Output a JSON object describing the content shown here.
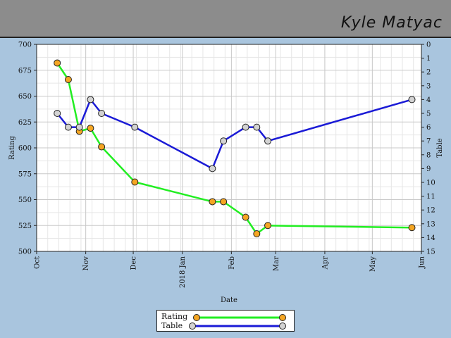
{
  "header": {
    "name": "Kyle Matyac"
  },
  "chart_data": {
    "type": "line",
    "xlabel": "Date",
    "ylabel_left": "Rating",
    "ylabel_right": "Table",
    "x_ticks": [
      {
        "date": "2017-10-01",
        "label": "Oct"
      },
      {
        "date": "2017-11-01",
        "label": "Nov"
      },
      {
        "date": "2017-12-01",
        "label": "Dec"
      },
      {
        "date": "2018-01-01",
        "label": "2018 Jan"
      },
      {
        "date": "2018-02-01",
        "label": "Feb"
      },
      {
        "date": "2018-03-01",
        "label": "Mar"
      },
      {
        "date": "2018-04-01",
        "label": "Apr"
      },
      {
        "date": "2018-05-01",
        "label": "May"
      },
      {
        "date": "2018-06-01",
        "label": "Jun"
      }
    ],
    "xlim": [
      "2017-10-01",
      "2018-06-01"
    ],
    "ylim_left": [
      500,
      700
    ],
    "ylim_right": [
      0,
      15
    ],
    "yticks_left": [
      500,
      525,
      550,
      575,
      600,
      625,
      650,
      675,
      700
    ],
    "yticks_right": [
      0,
      1,
      2,
      3,
      4,
      5,
      6,
      7,
      8,
      9,
      10,
      11,
      12,
      13,
      14,
      15
    ],
    "grid": true,
    "legend_position": "bottom-center",
    "series": [
      {
        "name": "Rating",
        "axis": "left",
        "line_color": "#22ee22",
        "marker_color": "#f5a623",
        "points": [
          {
            "date": "2017-10-14",
            "value": 682
          },
          {
            "date": "2017-10-21",
            "value": 666
          },
          {
            "date": "2017-10-28",
            "value": 616
          },
          {
            "date": "2017-11-04",
            "value": 619
          },
          {
            "date": "2017-11-11",
            "value": 601
          },
          {
            "date": "2017-12-02",
            "value": 567
          },
          {
            "date": "2018-01-20",
            "value": 548
          },
          {
            "date": "2018-01-27",
            "value": 548
          },
          {
            "date": "2018-02-10",
            "value": 533
          },
          {
            "date": "2018-02-17",
            "value": 517
          },
          {
            "date": "2018-02-24",
            "value": 525
          },
          {
            "date": "2018-05-26",
            "value": 523
          }
        ]
      },
      {
        "name": "Table",
        "axis": "right",
        "line_color": "#1a1ad6",
        "marker_color": "#d3d3d3",
        "points": [
          {
            "date": "2017-10-14",
            "value": 5
          },
          {
            "date": "2017-10-21",
            "value": 6
          },
          {
            "date": "2017-10-28",
            "value": 6
          },
          {
            "date": "2017-11-04",
            "value": 4
          },
          {
            "date": "2017-11-11",
            "value": 5
          },
          {
            "date": "2017-12-02",
            "value": 6
          },
          {
            "date": "2018-01-20",
            "value": 9
          },
          {
            "date": "2018-01-27",
            "value": 7
          },
          {
            "date": "2018-02-10",
            "value": 6
          },
          {
            "date": "2018-02-17",
            "value": 6
          },
          {
            "date": "2018-02-24",
            "value": 7
          },
          {
            "date": "2018-05-26",
            "value": 4
          }
        ]
      }
    ]
  }
}
